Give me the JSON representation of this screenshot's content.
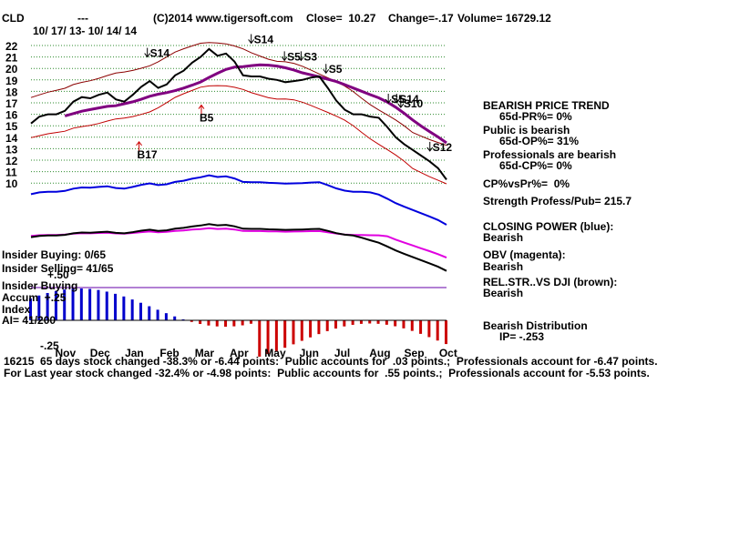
{
  "header": {
    "ticker": "CLD",
    "dashes": "---",
    "copyright": "(C)2014 www.tigersoft.com",
    "close": "Close=  10.27",
    "change": "Change=-.17",
    "volume": "Volume= 16729.12",
    "date_range": "10/ 17/ 13- 10/ 14/ 14"
  },
  "signals": [
    "S14",
    "S14",
    "S5",
    "S3",
    "S5",
    "S5",
    "S14",
    "S10",
    "S12",
    "B5",
    "B17"
  ],
  "left_labels": {
    "insider_buying": "Insider Buying: 0/65",
    "insider_selling": "Insider Selling= 41/65",
    "plus50": "+.50",
    "insider_buying2": "Insider Buying",
    "accum": "Accum  +.25",
    "index": "Index",
    "ai": "AI= 41/200",
    "minus25": "-.25",
    "days_note": "16215  65 days stock changed -38.3% or -6.44 points:  Public accounts for  .03 points.;  Professionals account for -6.47 points."
  },
  "footer": {
    "line2": "For Last year stock changed -32.4% or -4.98 points:  Public accounts for  .55 points.;  Professionals account for -5.53 points."
  },
  "right_panel": {
    "trend_title": "BEARISH PRICE TREND",
    "trend_pr": "65d-PR%= 0%",
    "public_title": "Public is bearish",
    "public_op": "65d-OP%= 31%",
    "pros_title": "Professionals are bearish",
    "pros_cp": "65d-CP%= 0%",
    "cpvspr": "CP%vsPr%=  0%",
    "strength": "Strength Profess/Pub= 215.7",
    "closing_power": "CLOSING POWER (blue):",
    "closing_power_val": "Bearish",
    "obv": "OBV (magenta):",
    "obv_val": "Bearish",
    "relstr": "REL.STR..VS DJI (brown):",
    "relstr_val": "Bearish",
    "distribution": "Bearish Distribution",
    "ip": "IP= -.253"
  },
  "chart_data": {
    "type": "line",
    "x_ticks": [
      "Nov",
      "Dec",
      "Jan",
      "Feb",
      "Mar",
      "Apr",
      "May",
      "Jun",
      "Jul",
      "Aug",
      "Sep",
      "Oct"
    ],
    "y_ticks": [
      22,
      21,
      20,
      19,
      18,
      17,
      16,
      15,
      14,
      13,
      12,
      11,
      10
    ],
    "ylim": [
      10,
      22
    ],
    "grid": true,
    "series": [
      {
        "name": "",
        "color": "#000000",
        "values": [
          15.2,
          15.8,
          16.0,
          16.0,
          16.3,
          17.1,
          17.5,
          17.4,
          17.7,
          17.9,
          17.3,
          17.1,
          17.7,
          18.4,
          18.9,
          18.3,
          18.6,
          19.4,
          19.8,
          20.5,
          21.0,
          21.7,
          21.1,
          21.3,
          20.6,
          19.4,
          19.3,
          19.3,
          19.1,
          19.0,
          18.8,
          18.9,
          19.0,
          19.2,
          19.3,
          18.3,
          17.2,
          16.4,
          16.0,
          16.0,
          15.8,
          15.7,
          14.9,
          14.0,
          13.4,
          12.9,
          12.4,
          11.9,
          11.3,
          10.3
        ]
      }
    ],
    "signals": [
      {
        "label": "S14",
        "x": 0.28,
        "price": 21.0,
        "dir": "down"
      },
      {
        "label": "S14",
        "x": 0.53,
        "price": 22.2,
        "dir": "down"
      },
      {
        "label": "S5",
        "x": 0.61,
        "price": 20.7,
        "dir": "down"
      },
      {
        "label": "S3",
        "x": 0.65,
        "price": 20.7,
        "dir": "down"
      },
      {
        "label": "S5",
        "x": 0.71,
        "price": 19.6,
        "dir": "down"
      },
      {
        "label": "S5",
        "x": 0.86,
        "price": 17.0,
        "dir": "down"
      },
      {
        "label": "S14",
        "x": 0.88,
        "price": 17.0,
        "dir": "down"
      },
      {
        "label": "S10",
        "x": 0.89,
        "price": 16.6,
        "dir": "down"
      },
      {
        "label": "S12",
        "x": 0.96,
        "price": 12.8,
        "dir": "down"
      },
      {
        "label": "B5",
        "x": 0.41,
        "price": 16.8,
        "dir": "up"
      },
      {
        "label": "B17",
        "x": 0.26,
        "price": 13.6,
        "dir": "up"
      }
    ]
  }
}
